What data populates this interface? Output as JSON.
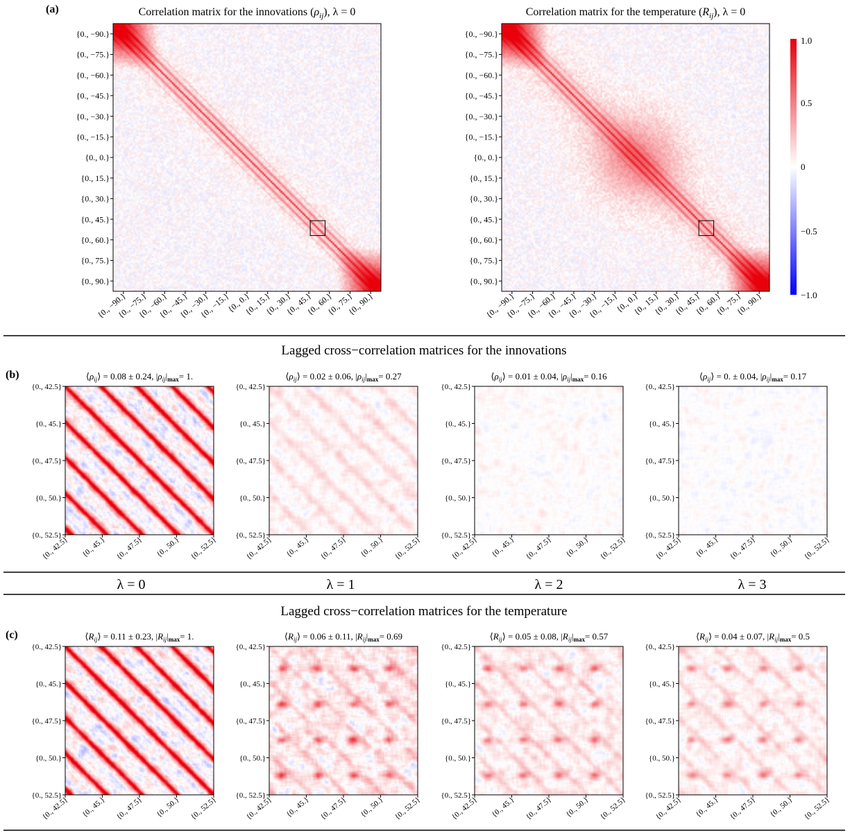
{
  "panel_letters": [
    "(a)",
    "(b)",
    "(c)"
  ],
  "section_titles": {
    "b": "Lagged cross−correlation matrices for the innovations",
    "c": "Lagged cross−correlation matrices for the temperature"
  },
  "lambda_labels": [
    "λ = 0",
    "λ = 1",
    "λ = 2",
    "λ = 3"
  ],
  "colors": {
    "positive": "#e8000b",
    "negative": "#0000ff",
    "zero": "#ffffff",
    "frame": "#000000"
  },
  "colorbar": {
    "max_label": "1.0",
    "ticks": [
      "0.5",
      "0",
      "−0.5",
      "−1.0"
    ],
    "range": [
      -1.0,
      1.0
    ]
  },
  "chart_data": [
    {
      "type": "heatmap",
      "id": "a-innovations",
      "title": "Correlation matrix for the innovations (ρij), λ = 0",
      "title_parts": [
        "Correlation matrix for the innovations (",
        "ρ",
        "ij",
        "), λ = 0"
      ],
      "tick_labels": [
        "{0., −90.}",
        "{0., −75.}",
        "{0., −60.}",
        "{0., −45.}",
        "{0., −30.}",
        "{0., −15.}",
        "{0., 0.}",
        "{0., 15.}",
        "{0., 30.}",
        "{0., 45.}",
        "{0., 60.}",
        "{0., 75.}",
        "{0., 90.}"
      ],
      "zoom_box": [
        "{0., 42.5}",
        "{0., 52.5}"
      ],
      "structure": "strong positive main diagonal with weaker parallel sub-diagonals; strong positive blocks at polar corners"
    },
    {
      "type": "heatmap",
      "id": "a-temperature",
      "title": "Correlation matrix for the temperature (Rij), λ = 0",
      "title_parts": [
        "Correlation matrix for the temperature (",
        "R",
        "ij",
        "), λ = 0"
      ],
      "tick_labels": [
        "{0., −90.}",
        "{0., −75.}",
        "{0., −60.}",
        "{0., −45.}",
        "{0., −30.}",
        "{0., −15.}",
        "{0., 0.}",
        "{0., 15.}",
        "{0., 30.}",
        "{0., 45.}",
        "{0., 60.}",
        "{0., 75.}",
        "{0., 90.}"
      ],
      "zoom_box": [
        "{0., 42.5}",
        "{0., 52.5}"
      ],
      "structure": "main diagonal plus broad positive block around the equator and strong polar corner blocks"
    },
    {
      "type": "heatmap",
      "id": "b-0",
      "lag": 0,
      "quantity": "rho",
      "title_parts": [
        "⟨",
        "ρ",
        "ij",
        "⟩ = 0.08 ± 0.24, |",
        "ρ",
        "ij",
        "|",
        "max",
        "= 1."
      ],
      "mean": 0.08,
      "std": 0.24,
      "abs_max": 1.0,
      "tick_labels": [
        "{0., 42.5}",
        "{0., 45.}",
        "{0., 47.5}",
        "{0., 50.}",
        "{0., 52.5}"
      ]
    },
    {
      "type": "heatmap",
      "id": "b-1",
      "lag": 1,
      "quantity": "rho",
      "title_parts": [
        "⟨",
        "ρ",
        "ij",
        "⟩ = 0.02 ± 0.06, |",
        "ρ",
        "ij",
        "|",
        "max",
        "= 0.27"
      ],
      "mean": 0.02,
      "std": 0.06,
      "abs_max": 0.27,
      "tick_labels": [
        "{0., 42.5}",
        "{0., 45.}",
        "{0., 47.5}",
        "{0., 50.}",
        "{0., 52.5}"
      ]
    },
    {
      "type": "heatmap",
      "id": "b-2",
      "lag": 2,
      "quantity": "rho",
      "title_parts": [
        "⟨",
        "ρ",
        "ij",
        "⟩ = 0.01 ± 0.04, |",
        "ρ",
        "ij",
        "|",
        "max",
        "= 0.16"
      ],
      "mean": 0.01,
      "std": 0.04,
      "abs_max": 0.16,
      "tick_labels": [
        "{0., 42.5}",
        "{0., 45.}",
        "{0., 47.5}",
        "{0., 50.}",
        "{0., 52.5}"
      ]
    },
    {
      "type": "heatmap",
      "id": "b-3",
      "lag": 3,
      "quantity": "rho",
      "title_parts": [
        "⟨",
        "ρ",
        "ij",
        "⟩ = 0. ± 0.04, |",
        "ρ",
        "ij",
        "|",
        "max",
        "= 0.17"
      ],
      "mean": 0.0,
      "std": 0.04,
      "abs_max": 0.17,
      "tick_labels": [
        "{0., 42.5}",
        "{0., 45.}",
        "{0., 47.5}",
        "{0., 50.}",
        "{0., 52.5}"
      ]
    },
    {
      "type": "heatmap",
      "id": "c-0",
      "lag": 0,
      "quantity": "R",
      "title_parts": [
        "⟨",
        "R",
        "ij",
        "⟩ = 0.11 ± 0.23, |",
        "R",
        "ij",
        "|",
        "max",
        "= 1."
      ],
      "mean": 0.11,
      "std": 0.23,
      "abs_max": 1.0,
      "tick_labels": [
        "{0., 42.5}",
        "{0., 45.}",
        "{0., 47.5}",
        "{0., 50.}",
        "{0., 52.5}"
      ]
    },
    {
      "type": "heatmap",
      "id": "c-1",
      "lag": 1,
      "quantity": "R",
      "title_parts": [
        "⟨",
        "R",
        "ij",
        "⟩ = 0.06 ± 0.11, |",
        "R",
        "ij",
        "|",
        "max",
        "= 0.69"
      ],
      "mean": 0.06,
      "std": 0.11,
      "abs_max": 0.69,
      "tick_labels": [
        "{0., 42.5}",
        "{0., 45.}",
        "{0., 47.5}",
        "{0., 50.}",
        "{0., 52.5}"
      ]
    },
    {
      "type": "heatmap",
      "id": "c-2",
      "lag": 2,
      "quantity": "R",
      "title_parts": [
        "⟨",
        "R",
        "ij",
        "⟩ = 0.05 ± 0.08, |",
        "R",
        "ij",
        "|",
        "max",
        "= 0.57"
      ],
      "mean": 0.05,
      "std": 0.08,
      "abs_max": 0.57,
      "tick_labels": [
        "{0., 42.5}",
        "{0., 45.}",
        "{0., 47.5}",
        "{0., 50.}",
        "{0., 52.5}"
      ]
    },
    {
      "type": "heatmap",
      "id": "c-3",
      "lag": 3,
      "quantity": "R",
      "title_parts": [
        "⟨",
        "R",
        "ij",
        "⟩ = 0.04 ± 0.07, |",
        "R",
        "ij",
        "|",
        "max",
        "= 0.5"
      ],
      "mean": 0.04,
      "std": 0.07,
      "abs_max": 0.5,
      "tick_labels": [
        "{0., 42.5}",
        "{0., 45.}",
        "{0., 47.5}",
        "{0., 50.}",
        "{0., 52.5}"
      ]
    }
  ]
}
